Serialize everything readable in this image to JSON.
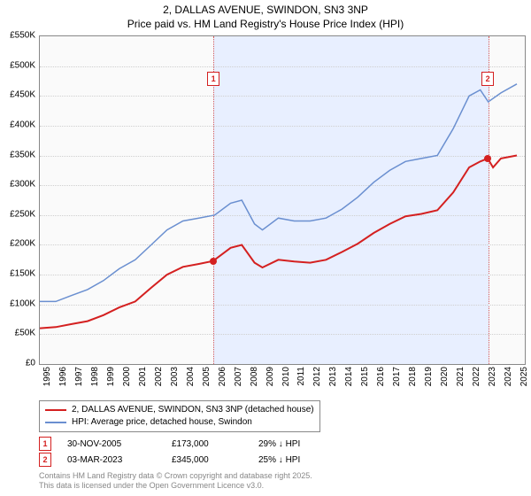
{
  "title": {
    "line1": "2, DALLAS AVENUE, SWINDON, SN3 3NP",
    "line2": "Price paid vs. HM Land Registry's House Price Index (HPI)"
  },
  "chart": {
    "type": "line",
    "background_color": "#fafafa",
    "shaded_color": "#e8efff",
    "grid_color": "#cfcfcf",
    "border_color": "#888888",
    "xlim": [
      1995,
      2025.5
    ],
    "ylim": [
      0,
      550
    ],
    "ytick_step": 50,
    "ytick_prefix": "£",
    "ytick_suffix": "K",
    "xticks": [
      1995,
      1996,
      1997,
      1998,
      1999,
      2000,
      2001,
      2002,
      2003,
      2004,
      2005,
      2006,
      2007,
      2008,
      2009,
      2010,
      2011,
      2012,
      2013,
      2014,
      2015,
      2016,
      2017,
      2018,
      2019,
      2020,
      2021,
      2022,
      2023,
      2024,
      2025
    ],
    "shaded_start": 2005.92,
    "shaded_end": 2023.17,
    "series": [
      {
        "name": "hpi",
        "color": "#6a8fd0",
        "width": 1.5,
        "label": "HPI: Average price, detached house, Swindon",
        "points": [
          [
            1995,
            105
          ],
          [
            1996,
            105
          ],
          [
            1997,
            115
          ],
          [
            1998,
            125
          ],
          [
            1999,
            140
          ],
          [
            2000,
            160
          ],
          [
            2001,
            175
          ],
          [
            2002,
            200
          ],
          [
            2003,
            225
          ],
          [
            2004,
            240
          ],
          [
            2005,
            245
          ],
          [
            2006,
            250
          ],
          [
            2007,
            270
          ],
          [
            2007.7,
            275
          ],
          [
            2008.5,
            235
          ],
          [
            2009,
            225
          ],
          [
            2010,
            245
          ],
          [
            2011,
            240
          ],
          [
            2012,
            240
          ],
          [
            2013,
            245
          ],
          [
            2014,
            260
          ],
          [
            2015,
            280
          ],
          [
            2016,
            305
          ],
          [
            2017,
            325
          ],
          [
            2018,
            340
          ],
          [
            2019,
            345
          ],
          [
            2020,
            350
          ],
          [
            2021,
            395
          ],
          [
            2022,
            450
          ],
          [
            2022.7,
            460
          ],
          [
            2023.2,
            440
          ],
          [
            2024,
            455
          ],
          [
            2025,
            470
          ]
        ]
      },
      {
        "name": "price_paid",
        "color": "#d42020",
        "width": 2,
        "label": "2, DALLAS AVENUE, SWINDON, SN3 3NP (detached house)",
        "points": [
          [
            1995,
            60
          ],
          [
            1996,
            62
          ],
          [
            1997,
            67
          ],
          [
            1998,
            72
          ],
          [
            1999,
            82
          ],
          [
            2000,
            95
          ],
          [
            2001,
            105
          ],
          [
            2002,
            128
          ],
          [
            2003,
            150
          ],
          [
            2004,
            163
          ],
          [
            2005,
            168
          ],
          [
            2005.92,
            173
          ],
          [
            2006,
            175
          ],
          [
            2007,
            195
          ],
          [
            2007.7,
            200
          ],
          [
            2008.5,
            170
          ],
          [
            2009,
            162
          ],
          [
            2010,
            175
          ],
          [
            2011,
            172
          ],
          [
            2012,
            170
          ],
          [
            2013,
            175
          ],
          [
            2014,
            188
          ],
          [
            2015,
            202
          ],
          [
            2016,
            220
          ],
          [
            2017,
            235
          ],
          [
            2018,
            248
          ],
          [
            2019,
            252
          ],
          [
            2020,
            258
          ],
          [
            2021,
            288
          ],
          [
            2022,
            330
          ],
          [
            2022.7,
            340
          ],
          [
            2023.17,
            345
          ],
          [
            2023.5,
            330
          ],
          [
            2024,
            345
          ],
          [
            2025,
            350
          ]
        ]
      }
    ],
    "sale_markers": [
      {
        "num": "1",
        "x": 2005.92,
        "y_box": 490,
        "color": "#d42020",
        "point_y": 173
      },
      {
        "num": "2",
        "x": 2023.17,
        "y_box": 490,
        "color": "#d42020",
        "point_y": 345
      }
    ]
  },
  "legend": {
    "rows": [
      {
        "color": "#d42020",
        "label": "2, DALLAS AVENUE, SWINDON, SN3 3NP (detached house)"
      },
      {
        "color": "#6a8fd0",
        "label": "HPI: Average price, detached house, Swindon"
      }
    ]
  },
  "sales": [
    {
      "num": "1",
      "color": "#d42020",
      "date": "30-NOV-2005",
      "price": "£173,000",
      "diff": "29% ↓ HPI"
    },
    {
      "num": "2",
      "color": "#d42020",
      "date": "03-MAR-2023",
      "price": "£345,000",
      "diff": "25% ↓ HPI"
    }
  ],
  "footer": {
    "line1": "Contains HM Land Registry data © Crown copyright and database right 2025.",
    "line2": "This data is licensed under the Open Government Licence v3.0."
  }
}
